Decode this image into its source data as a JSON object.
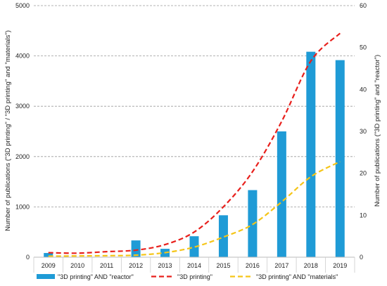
{
  "chart_data": {
    "type": "bar",
    "categories": [
      "2009",
      "2010",
      "2011",
      "2012",
      "2013",
      "2014",
      "2015",
      "2016",
      "2017",
      "2018",
      "2019"
    ],
    "y_left_label": "Number of publications (\"3D printing\" / \"3D printing\" and \"materials\")",
    "y_right_label": "Number of publications (\"3D printing\" and \"reactor\")",
    "y_left_ticks": [
      0,
      1000,
      2000,
      3000,
      4000,
      5000
    ],
    "y_right_ticks": [
      0,
      10,
      20,
      30,
      40,
      50,
      60
    ],
    "y_left_range": [
      0,
      5000
    ],
    "y_right_range": [
      0,
      60
    ],
    "grid": "horizontal dashed at left ticks",
    "legend_position": "bottom",
    "series": [
      {
        "name": "\"3D printing\" AND \"reactor\"",
        "kind": "bar",
        "axis": "right",
        "color": "#1f9bd6",
        "values": [
          1,
          0,
          0,
          4,
          2,
          5,
          10,
          16,
          30,
          49,
          47
        ]
      },
      {
        "name": "\"3D printing\"",
        "kind": "line",
        "style": "dashed",
        "axis": "left",
        "color": "#e8201c",
        "values": [
          90,
          80,
          110,
          140,
          250,
          500,
          1000,
          1700,
          2700,
          3900,
          4450
        ]
      },
      {
        "name": "\"3D printing\" AND \"materials\"",
        "kind": "line",
        "style": "dashed",
        "axis": "left",
        "color": "#f5c518",
        "values": [
          20,
          25,
          30,
          40,
          90,
          200,
          400,
          650,
          1100,
          1600,
          1900
        ]
      }
    ]
  }
}
